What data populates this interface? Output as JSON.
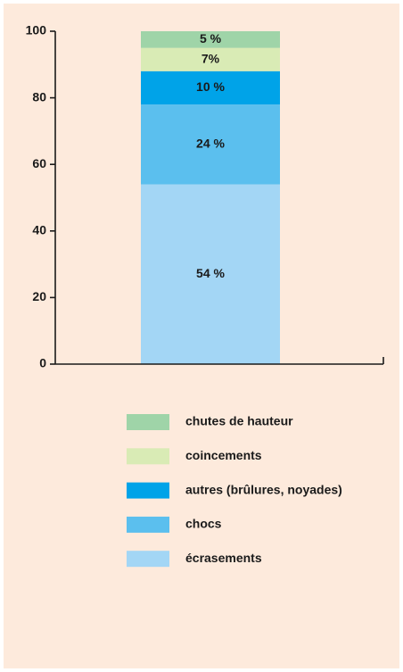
{
  "chart_data": {
    "type": "bar",
    "stacked": true,
    "categories": [
      null
    ],
    "series": [
      {
        "name": "écrasements",
        "color": "#a3d6f5",
        "values": [
          54
        ],
        "value_labels": [
          "54 %"
        ]
      },
      {
        "name": "chocs",
        "color": "#5bbfee",
        "values": [
          24
        ],
        "value_labels": [
          "24 %"
        ]
      },
      {
        "name": "autres (brûlures, noyades)",
        "color": "#00a3e8",
        "values": [
          10
        ],
        "value_labels": [
          "10 %"
        ]
      },
      {
        "name": "coincements",
        "color": "#d9ebb5",
        "values": [
          7
        ],
        "value_labels": [
          "7%"
        ]
      },
      {
        "name": "chutes de hauteur",
        "color": "#9fd4a8",
        "values": [
          5
        ],
        "value_labels": [
          "5 %"
        ]
      }
    ],
    "ylim": [
      0,
      100
    ],
    "yticks": [
      0,
      20,
      40,
      60,
      80,
      100
    ],
    "grid": false
  }
}
